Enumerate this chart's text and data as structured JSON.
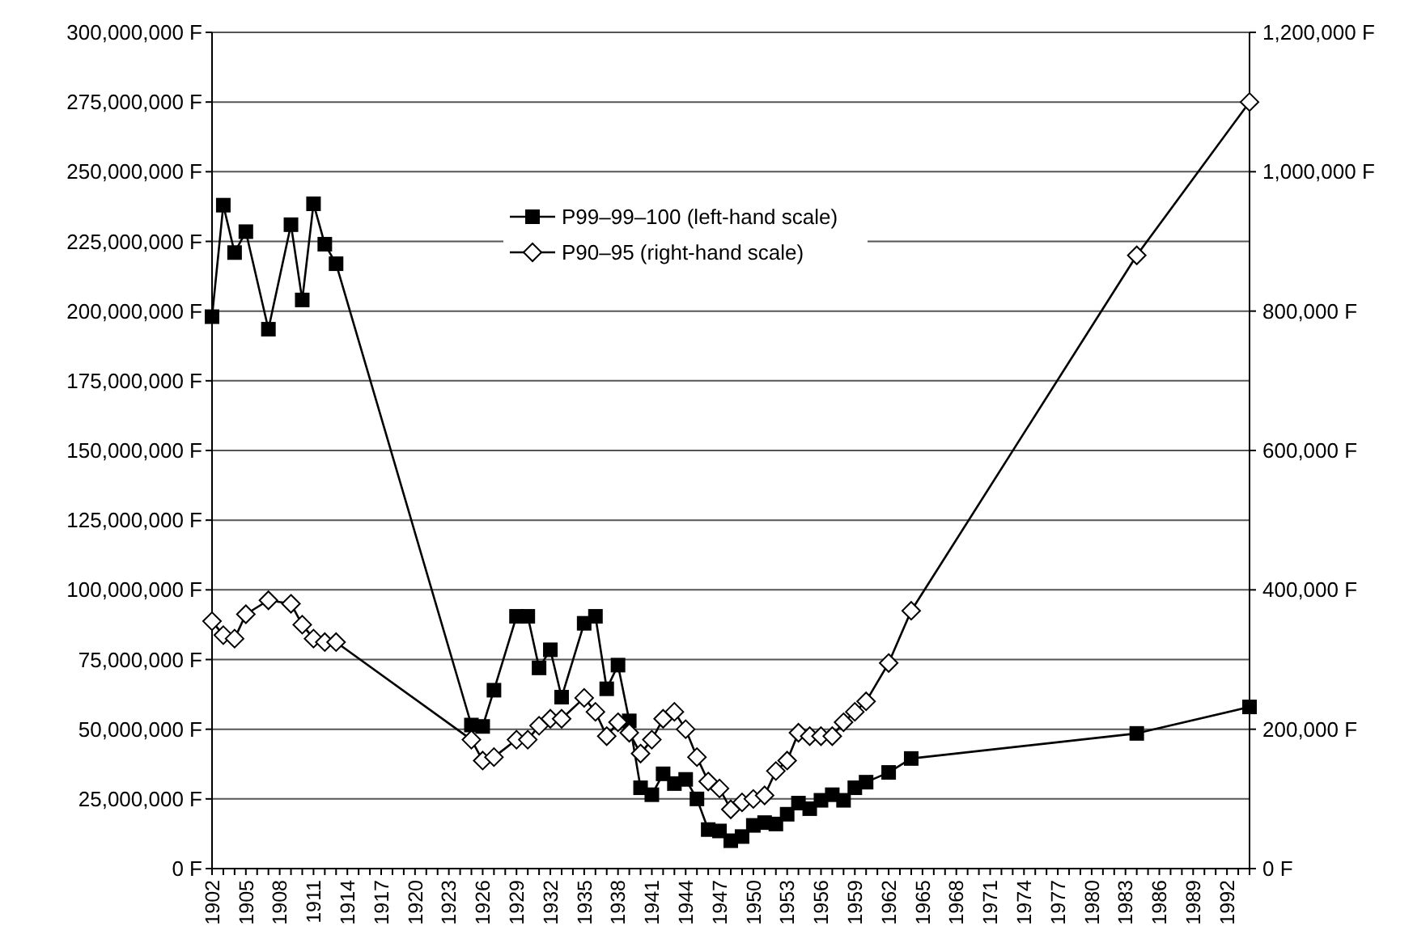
{
  "chart_data": {
    "type": "line",
    "legend": "top",
    "grid": "y",
    "xlim": [
      1902,
      1994
    ],
    "xticks": [
      {
        "value": 1902,
        "label": "1902"
      },
      {
        "value": 1903,
        "label": null
      },
      {
        "value": 1904,
        "label": null
      },
      {
        "value": 1905,
        "label": "1905"
      },
      {
        "value": 1906,
        "label": null
      },
      {
        "value": 1907,
        "label": null
      },
      {
        "value": 1908,
        "label": "1908"
      },
      {
        "value": 1909,
        "label": null
      },
      {
        "value": 1910,
        "label": null
      },
      {
        "value": 1911,
        "label": "1911"
      },
      {
        "value": 1912,
        "label": null
      },
      {
        "value": 1913,
        "label": null
      },
      {
        "value": 1914,
        "label": "1914"
      },
      {
        "value": 1915,
        "label": null
      },
      {
        "value": 1916,
        "label": null
      },
      {
        "value": 1917,
        "label": "1917"
      },
      {
        "value": 1918,
        "label": null
      },
      {
        "value": 1919,
        "label": null
      },
      {
        "value": 1920,
        "label": "1920"
      },
      {
        "value": 1921,
        "label": null
      },
      {
        "value": 1922,
        "label": null
      },
      {
        "value": 1923,
        "label": "1923"
      },
      {
        "value": 1924,
        "label": null
      },
      {
        "value": 1925,
        "label": null
      },
      {
        "value": 1926,
        "label": "1926"
      },
      {
        "value": 1927,
        "label": null
      },
      {
        "value": 1928,
        "label": null
      },
      {
        "value": 1929,
        "label": "1929"
      },
      {
        "value": 1930,
        "label": null
      },
      {
        "value": 1931,
        "label": null
      },
      {
        "value": 1932,
        "label": "1932"
      },
      {
        "value": 1933,
        "label": null
      },
      {
        "value": 1934,
        "label": null
      },
      {
        "value": 1935,
        "label": "1935"
      },
      {
        "value": 1936,
        "label": null
      },
      {
        "value": 1937,
        "label": null
      },
      {
        "value": 1938,
        "label": "1938"
      },
      {
        "value": 1939,
        "label": null
      },
      {
        "value": 1940,
        "label": null
      },
      {
        "value": 1941,
        "label": "1941"
      },
      {
        "value": 1942,
        "label": null
      },
      {
        "value": 1943,
        "label": null
      },
      {
        "value": 1944,
        "label": "1944"
      },
      {
        "value": 1945,
        "label": null
      },
      {
        "value": 1946,
        "label": null
      },
      {
        "value": 1947,
        "label": "1947"
      },
      {
        "value": 1948,
        "label": null
      },
      {
        "value": 1949,
        "label": null
      },
      {
        "value": 1950,
        "label": "1950"
      },
      {
        "value": 1951,
        "label": null
      },
      {
        "value": 1952,
        "label": null
      },
      {
        "value": 1953,
        "label": "1953"
      },
      {
        "value": 1954,
        "label": null
      },
      {
        "value": 1955,
        "label": null
      },
      {
        "value": 1956,
        "label": "1956"
      },
      {
        "value": 1957,
        "label": null
      },
      {
        "value": 1958,
        "label": null
      },
      {
        "value": 1959,
        "label": "1959"
      },
      {
        "value": 1960,
        "label": null
      },
      {
        "value": 1961,
        "label": null
      },
      {
        "value": 1962,
        "label": "1962"
      },
      {
        "value": 1963,
        "label": null
      },
      {
        "value": 1964,
        "label": null
      },
      {
        "value": 1965,
        "label": "1965"
      },
      {
        "value": 1966,
        "label": null
      },
      {
        "value": 1967,
        "label": null
      },
      {
        "value": 1968,
        "label": "1968"
      },
      {
        "value": 1969,
        "label": null
      },
      {
        "value": 1970,
        "label": null
      },
      {
        "value": 1971,
        "label": "1971"
      },
      {
        "value": 1972,
        "label": null
      },
      {
        "value": 1973,
        "label": null
      },
      {
        "value": 1974,
        "label": "1974"
      },
      {
        "value": 1975,
        "label": null
      },
      {
        "value": 1976,
        "label": null
      },
      {
        "value": 1977,
        "label": "1977"
      },
      {
        "value": 1978,
        "label": null
      },
      {
        "value": 1979,
        "label": null
      },
      {
        "value": 1980,
        "label": "1980"
      },
      {
        "value": 1981,
        "label": null
      },
      {
        "value": 1982,
        "label": null
      },
      {
        "value": 1983,
        "label": "1983"
      },
      {
        "value": 1984,
        "label": null
      },
      {
        "value": 1985,
        "label": null
      },
      {
        "value": 1986,
        "label": "1986"
      },
      {
        "value": 1987,
        "label": null
      },
      {
        "value": 1988,
        "label": null
      },
      {
        "value": 1989,
        "label": "1989"
      },
      {
        "value": 1990,
        "label": null
      },
      {
        "value": 1991,
        "label": null
      },
      {
        "value": 1992,
        "label": "1992"
      },
      {
        "value": 1993,
        "label": null
      },
      {
        "value": 1994,
        "label": null
      }
    ],
    "ylim": [
      0,
      300000000
    ],
    "yticks": [
      {
        "value": 0,
        "label": "0 F"
      },
      {
        "value": 25000000,
        "label": "25,000,000 F"
      },
      {
        "value": 50000000,
        "label": "50,000,000 F"
      },
      {
        "value": 75000000,
        "label": "75,000,000 F"
      },
      {
        "value": 100000000,
        "label": "100,000,000 F"
      },
      {
        "value": 125000000,
        "label": "125,000,000 F"
      },
      {
        "value": 150000000,
        "label": "150,000,000 F"
      },
      {
        "value": 175000000,
        "label": "175,000,000 F"
      },
      {
        "value": 200000000,
        "label": "200,000,000 F"
      },
      {
        "value": 225000000,
        "label": "225,000,000 F"
      },
      {
        "value": 250000000,
        "label": "250,000,000 F"
      },
      {
        "value": 275000000,
        "label": "275,000,000 F"
      },
      {
        "value": 300000000,
        "label": "300,000,000 F"
      }
    ],
    "y2lim": [
      0,
      1200000
    ],
    "y2ticks": [
      {
        "value": 0,
        "label": "0 F"
      },
      {
        "value": 200000,
        "label": "200,000 F"
      },
      {
        "value": 400000,
        "label": "400,000 F"
      },
      {
        "value": 600000,
        "label": "600,000 F"
      },
      {
        "value": 800000,
        "label": "800,000 F"
      },
      {
        "value": 1000000,
        "label": "1,000,000 F"
      },
      {
        "value": 1200000,
        "label": "1,200,000 F"
      }
    ],
    "x": [
      1902,
      1903,
      1904,
      1905,
      1907,
      1909,
      1910,
      1911,
      1912,
      1913,
      1925,
      1926,
      1927,
      1929,
      1930,
      1931,
      1932,
      1933,
      1935,
      1936,
      1937,
      1938,
      1939,
      1940,
      1941,
      1942,
      1943,
      1944,
      1945,
      1946,
      1947,
      1948,
      1949,
      1950,
      1951,
      1952,
      1953,
      1954,
      1955,
      1956,
      1957,
      1958,
      1959,
      1960,
      1962,
      1964,
      1984,
      1994
    ],
    "series": [
      {
        "name": "P99–99–100 (left-hand scale)",
        "color": "#000000",
        "marker": "square",
        "values": [
          198000000,
          238000000,
          221000000,
          228500000,
          193500000,
          231000000,
          204000000,
          238500000,
          224000000,
          217000000,
          51500000,
          51000000,
          64000000,
          90500000,
          90500000,
          72000000,
          78500000,
          61500000,
          88000000,
          90500000,
          64500000,
          73000000,
          53000000,
          29000000,
          26500000,
          34000000,
          30500000,
          32000000,
          25000000,
          14000000,
          13500000,
          10000000,
          11500000,
          15500000,
          16500000,
          16000000,
          19500000,
          23500000,
          21500000,
          24500000,
          26500000,
          24500000,
          29000000,
          31000000,
          34500000,
          39500000,
          48500000,
          58000000
        ]
      },
      {
        "name": "P90–95 (right-hand scale)",
        "color": "#000000",
        "marker": "diamond",
        "axis": "y2",
        "values": [
          355000,
          335000,
          330000,
          365000,
          385000,
          380000,
          350000,
          330000,
          325000,
          325000,
          185000,
          155000,
          160000,
          185000,
          185000,
          205000,
          215000,
          215000,
          245000,
          225000,
          190000,
          210000,
          195000,
          165000,
          185000,
          215000,
          225000,
          200000,
          160000,
          125000,
          115000,
          85000,
          95000,
          100000,
          105000,
          140000,
          155000,
          195000,
          190000,
          190000,
          190000,
          210000,
          225000,
          240000,
          295000,
          370000,
          880000,
          1100000
        ]
      }
    ]
  }
}
